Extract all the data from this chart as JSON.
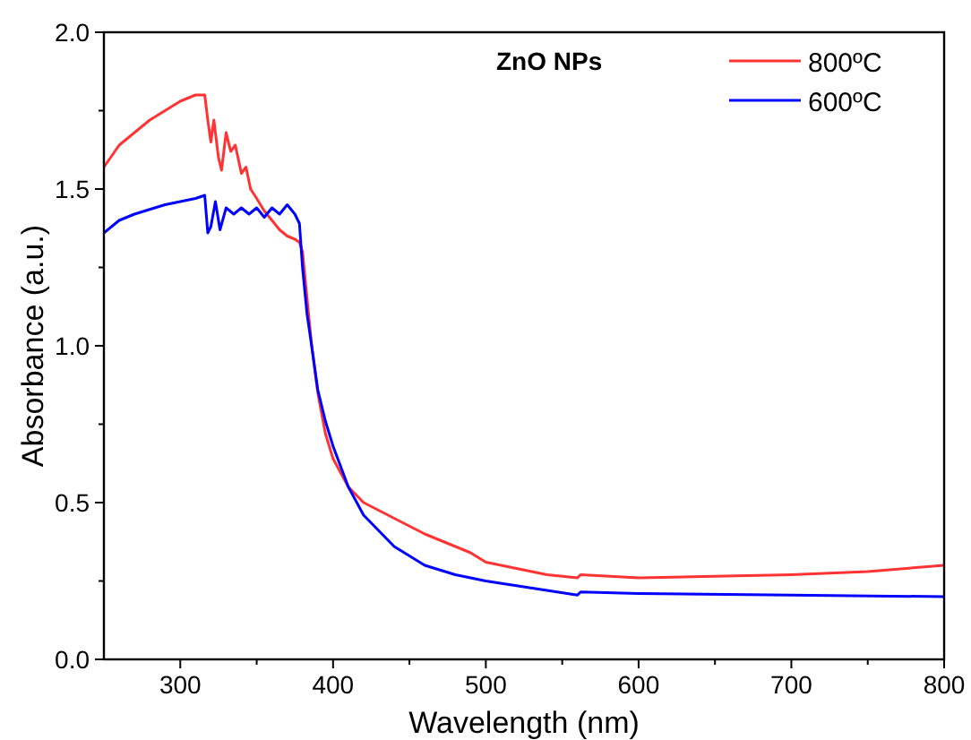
{
  "chart_data": {
    "type": "line",
    "title": "ZnO NPs",
    "xlabel": "Wavelength (nm)",
    "ylabel": "Absorbance (a.u.)",
    "xlim": [
      250,
      800
    ],
    "ylim": [
      0,
      2.0
    ],
    "xticks": [
      300,
      {
        "value": 350,
        "label": null
      },
      400,
      {
        "value": 450,
        "label": null
      },
      500,
      {
        "value": 550,
        "label": null
      },
      600,
      {
        "value": 650,
        "label": null
      },
      700,
      {
        "value": 750,
        "label": null
      },
      800
    ],
    "yticks": [
      {
        "value": 0,
        "label": "0.0"
      },
      {
        "value": 0.25,
        "label": null
      },
      0.5,
      {
        "value": 0.75,
        "label": null
      },
      {
        "value": 1,
        "label": "1.0"
      },
      {
        "value": 1.25,
        "label": null
      },
      1.5,
      {
        "value": 1.75,
        "label": null
      },
      {
        "value": 2,
        "label": "2.0"
      }
    ],
    "legend": "top right",
    "grid": false,
    "marker": "none",
    "line_style": "solid",
    "series": [
      {
        "name": "800ºC",
        "color": "#ff3333",
        "x": [
          250,
          260,
          270,
          280,
          290,
          300,
          310,
          316,
          318,
          320,
          322,
          325,
          327,
          330,
          333,
          336,
          340,
          343,
          346,
          350,
          355,
          360,
          365,
          370,
          375,
          378,
          380,
          383,
          386,
          390,
          395,
          400,
          410,
          420,
          440,
          460,
          480,
          490,
          500,
          520,
          540,
          560,
          562,
          600,
          650,
          700,
          750,
          800
        ],
        "values": [
          1.57,
          1.64,
          1.68,
          1.72,
          1.75,
          1.78,
          1.8,
          1.8,
          1.72,
          1.65,
          1.72,
          1.6,
          1.56,
          1.68,
          1.62,
          1.64,
          1.55,
          1.57,
          1.5,
          1.47,
          1.43,
          1.4,
          1.37,
          1.35,
          1.34,
          1.33,
          1.3,
          1.15,
          1.0,
          0.85,
          0.72,
          0.64,
          0.55,
          0.5,
          0.45,
          0.4,
          0.36,
          0.34,
          0.31,
          0.29,
          0.27,
          0.26,
          0.27,
          0.26,
          0.265,
          0.27,
          0.28,
          0.3
        ]
      },
      {
        "name": "600ºC",
        "color": "#0000ff",
        "x": [
          250,
          260,
          270,
          290,
          310,
          316,
          318,
          320,
          323,
          326,
          330,
          335,
          340,
          345,
          350,
          355,
          360,
          365,
          370,
          375,
          378,
          380,
          383,
          386,
          390,
          395,
          400,
          410,
          420,
          440,
          460,
          480,
          500,
          520,
          540,
          560,
          562,
          600,
          700,
          800
        ],
        "values": [
          1.36,
          1.4,
          1.42,
          1.45,
          1.47,
          1.48,
          1.36,
          1.38,
          1.46,
          1.37,
          1.44,
          1.42,
          1.44,
          1.42,
          1.44,
          1.41,
          1.44,
          1.42,
          1.45,
          1.42,
          1.39,
          1.25,
          1.1,
          1.0,
          0.86,
          0.76,
          0.68,
          0.55,
          0.46,
          0.36,
          0.3,
          0.27,
          0.25,
          0.235,
          0.22,
          0.205,
          0.215,
          0.21,
          0.205,
          0.2
        ]
      }
    ]
  }
}
